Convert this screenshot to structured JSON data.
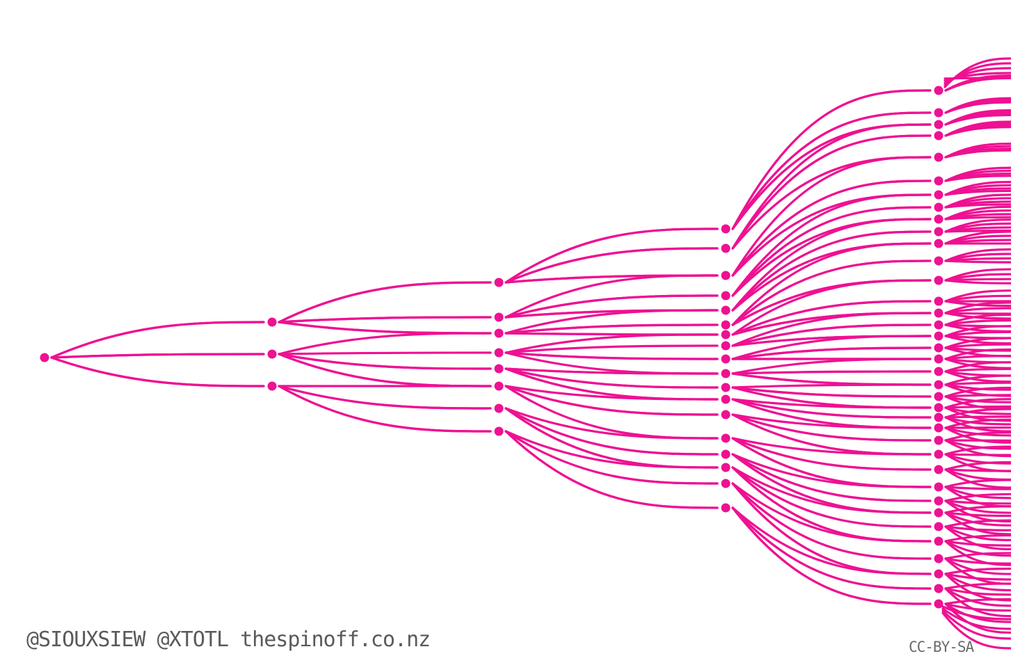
{
  "credit": "@SIOUXSIEW @XTOTL thespinoff.co.nz",
  "license": "CC-BY-SA",
  "colors": {
    "line": "#ee1192",
    "node": "#ee1192",
    "text": "#5a5a5a",
    "background": "#ffffff"
  },
  "diagram": {
    "type": "branching-tree",
    "branching_factor": 3,
    "generation_node_counts": [
      1,
      3,
      7,
      16,
      36
    ]
  }
}
